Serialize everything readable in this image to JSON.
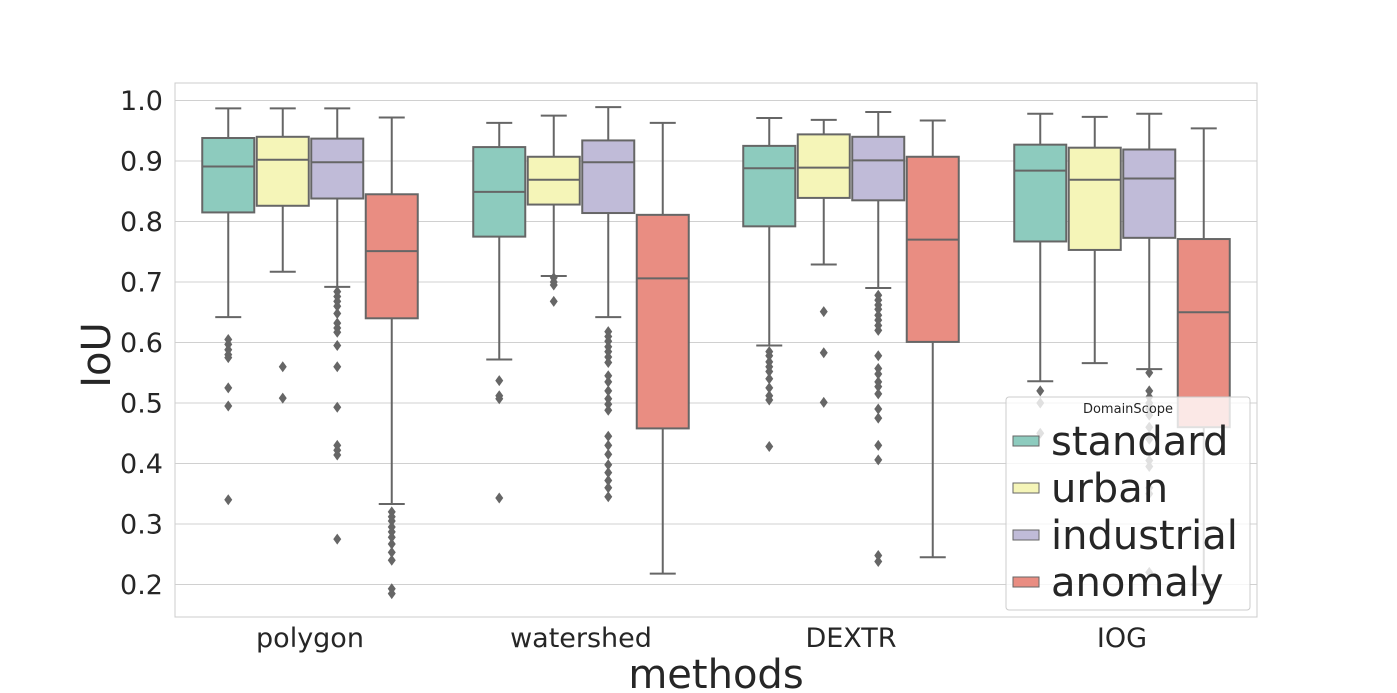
{
  "chart_data": {
    "type": "box",
    "title": "",
    "xlabel": "methods",
    "ylabel": "IoU",
    "ylim": [
      0.15,
      1.03
    ],
    "yticks": [
      "0.2",
      "0.3",
      "0.4",
      "0.5",
      "0.6",
      "0.7",
      "0.8",
      "0.9",
      "1.0"
    ],
    "grid": true,
    "categories": [
      "polygon",
      "watershed",
      "DEXTR",
      "IOG"
    ],
    "legend": {
      "title": "DomainScope",
      "placement": "lower-right"
    },
    "series": [
      {
        "name": "standard",
        "color": "#8dcbbe",
        "boxes": [
          {
            "whislo": 0.642,
            "q1": 0.815,
            "med": 0.891,
            "q3": 0.938,
            "whishi": 0.987,
            "fliers": [
              0.605,
              0.597,
              0.588,
              0.58,
              0.575,
              0.525,
              0.495,
              0.34
            ]
          },
          {
            "whislo": 0.572,
            "q1": 0.775,
            "med": 0.849,
            "q3": 0.923,
            "whishi": 0.963,
            "fliers": [
              0.537,
              0.512,
              0.507,
              0.343
            ]
          },
          {
            "whislo": 0.595,
            "q1": 0.792,
            "med": 0.888,
            "q3": 0.925,
            "whishi": 0.971,
            "fliers": [
              0.585,
              0.578,
              0.568,
              0.56,
              0.552,
              0.54,
              0.525,
              0.512,
              0.505,
              0.428
            ]
          },
          {
            "whislo": 0.536,
            "q1": 0.767,
            "med": 0.884,
            "q3": 0.927,
            "whishi": 0.978,
            "fliers": [
              0.52,
              0.5,
              0.45
            ]
          }
        ]
      },
      {
        "name": "urban",
        "color": "#f5f5b8",
        "boxes": [
          {
            "whislo": 0.717,
            "q1": 0.826,
            "med": 0.902,
            "q3": 0.94,
            "whishi": 0.987,
            "fliers": [
              0.56,
              0.508
            ]
          },
          {
            "whislo": 0.71,
            "q1": 0.828,
            "med": 0.869,
            "q3": 0.907,
            "whishi": 0.975,
            "fliers": [
              0.707,
              0.7,
              0.695,
              0.668
            ]
          },
          {
            "whislo": 0.729,
            "q1": 0.839,
            "med": 0.889,
            "q3": 0.944,
            "whishi": 0.968,
            "fliers": [
              0.651,
              0.583,
              0.501
            ]
          },
          {
            "whislo": 0.566,
            "q1": 0.753,
            "med": 0.869,
            "q3": 0.922,
            "whishi": 0.973,
            "fliers": []
          }
        ]
      },
      {
        "name": "industrial",
        "color": "#c0bbd8",
        "boxes": [
          {
            "whislo": 0.692,
            "q1": 0.838,
            "med": 0.898,
            "q3": 0.937,
            "whishi": 0.987,
            "fliers": [
              0.684,
              0.676,
              0.668,
              0.66,
              0.648,
              0.632,
              0.624,
              0.617,
              0.595,
              0.56,
              0.493,
              0.43,
              0.422,
              0.414,
              0.275
            ]
          },
          {
            "whislo": 0.642,
            "q1": 0.814,
            "med": 0.898,
            "q3": 0.934,
            "whishi": 0.989,
            "fliers": [
              0.618,
              0.61,
              0.602,
              0.593,
              0.585,
              0.576,
              0.567,
              0.545,
              0.535,
              0.52,
              0.507,
              0.498,
              0.488,
              0.445,
              0.43,
              0.415,
              0.398,
              0.385,
              0.372,
              0.36,
              0.345
            ]
          },
          {
            "whislo": 0.69,
            "q1": 0.835,
            "med": 0.901,
            "q3": 0.94,
            "whishi": 0.981,
            "fliers": [
              0.678,
              0.67,
              0.662,
              0.655,
              0.645,
              0.637,
              0.628,
              0.62,
              0.578,
              0.557,
              0.548,
              0.535,
              0.527,
              0.515,
              0.49,
              0.475,
              0.43,
              0.406,
              0.248,
              0.238
            ]
          },
          {
            "whislo": 0.556,
            "q1": 0.773,
            "med": 0.871,
            "q3": 0.919,
            "whishi": 0.978,
            "fliers": [
              0.55,
              0.52,
              0.51,
              0.5,
              0.49,
              0.48,
              0.46,
              0.44,
              0.405,
              0.395,
              0.36,
              0.35,
              0.22
            ]
          }
        ]
      },
      {
        "name": "anomaly",
        "color": "#e98d82",
        "boxes": [
          {
            "whislo": 0.333,
            "q1": 0.64,
            "med": 0.751,
            "q3": 0.845,
            "whishi": 0.972,
            "fliers": [
              0.32,
              0.312,
              0.305,
              0.295,
              0.287,
              0.278,
              0.267,
              0.253,
              0.24,
              0.193,
              0.185
            ]
          },
          {
            "whislo": 0.218,
            "q1": 0.458,
            "med": 0.706,
            "q3": 0.811,
            "whishi": 0.963,
            "fliers": []
          },
          {
            "whislo": 0.245,
            "q1": 0.601,
            "med": 0.77,
            "q3": 0.907,
            "whishi": 0.967,
            "fliers": []
          },
          {
            "whislo": 0.2,
            "q1": 0.46,
            "med": 0.65,
            "q3": 0.771,
            "whishi": 0.954,
            "fliers": []
          }
        ]
      }
    ]
  }
}
